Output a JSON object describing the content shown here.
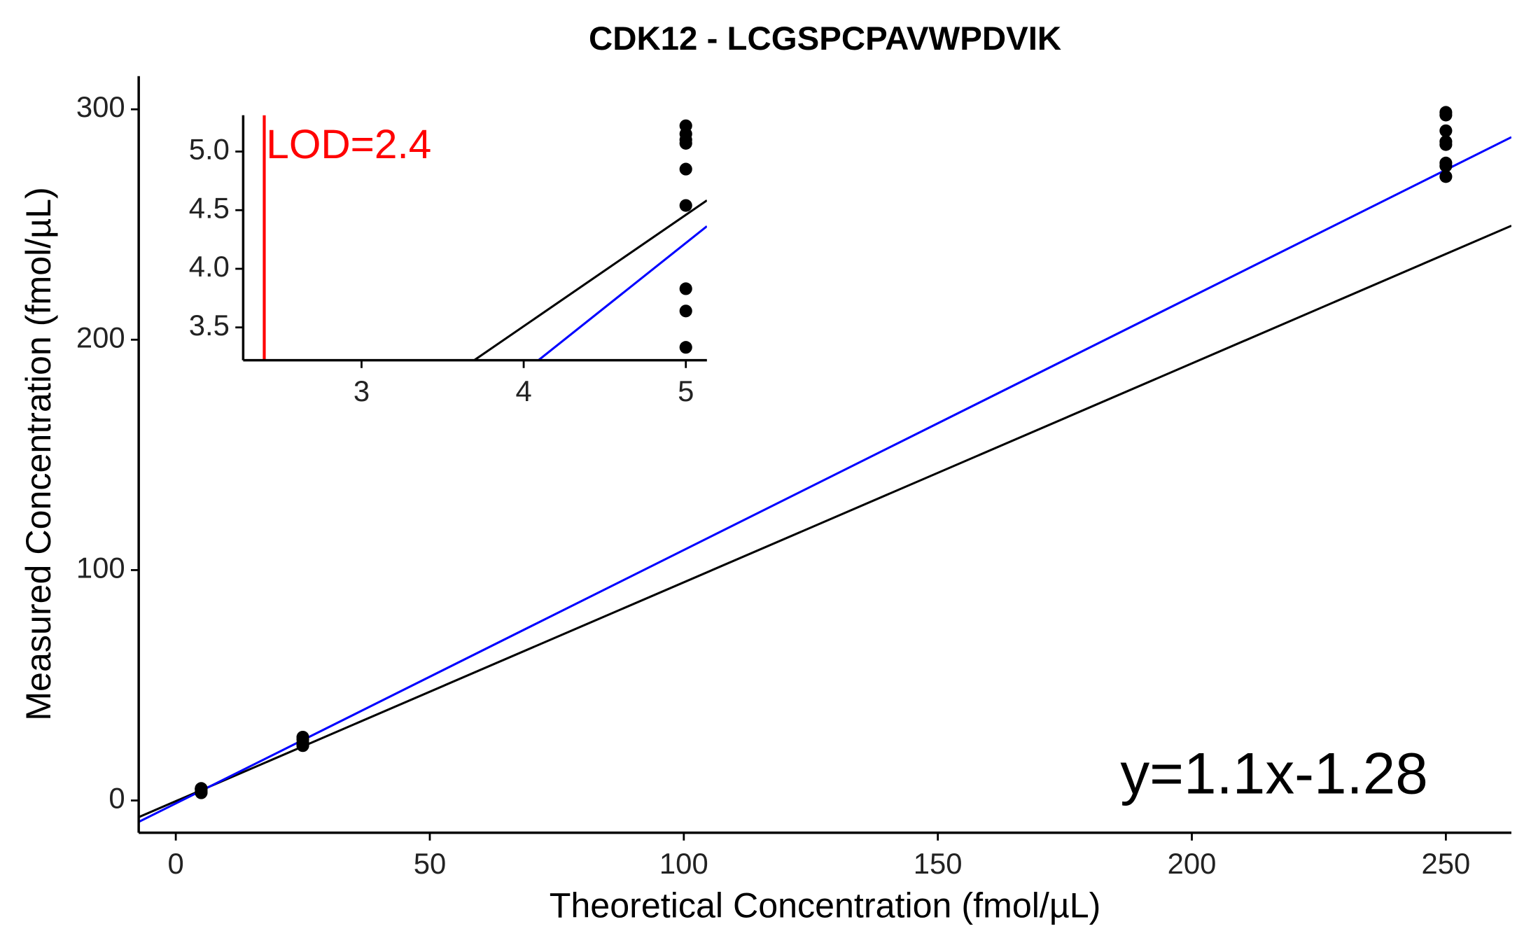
{
  "chart_data": [
    {
      "type": "scatter",
      "title": "CDK12 - LCGSPCPAVWPDVIK",
      "x_label": "Theoretical Concentration (fmol/µL)",
      "y_label": "Measured Concentration (fmol/µL)",
      "x": [
        5,
        5,
        5,
        5,
        5,
        5,
        5,
        5,
        5,
        25,
        25,
        25,
        25,
        25,
        250,
        250,
        250,
        250,
        250,
        250,
        250,
        250
      ],
      "values": [
        5.22,
        5.15,
        5.1,
        5.07,
        4.85,
        4.54,
        3.83,
        3.64,
        3.33,
        27.5,
        26.5,
        25.0,
        24.2,
        23.8,
        298.7,
        297.5,
        290.7,
        286.0,
        284.7,
        276.7,
        275.4,
        270.8
      ],
      "color": "#000000",
      "lines": [
        {
          "color": "#000000",
          "slope": 0.95,
          "intercept": -0.29
        },
        {
          "color": "#0000ff",
          "slope": 1.1,
          "intercept": -1.28
        }
      ],
      "annotation": "y=1.1x-1.28",
      "xlim": [
        -7.3,
        262.9
      ],
      "ylim": [
        -14,
        314.4
      ],
      "xticks": [
        0,
        50,
        100,
        150,
        200,
        250
      ],
      "yticks": [
        0,
        100,
        200,
        300
      ]
    },
    {
      "type": "scatter",
      "x": [
        5,
        5,
        5,
        5,
        5,
        5,
        5,
        5,
        5
      ],
      "values": [
        5.22,
        5.15,
        5.1,
        5.07,
        4.85,
        4.54,
        3.83,
        3.64,
        3.33
      ],
      "color": "#000000",
      "lines": [
        {
          "color": "#000000",
          "slope": 0.95,
          "intercept": -0.29
        },
        {
          "color": "#0000ff",
          "slope": 1.1,
          "intercept": -1.28
        }
      ],
      "lod": 2.4,
      "lod_color": "#ff0000",
      "annotation": "LOD=2.4",
      "xlim": [
        2.27,
        5.13
      ],
      "ylim": [
        3.22,
        5.31
      ],
      "xticks": [
        3,
        4,
        5
      ],
      "yticks": [
        3.5,
        {
          "value": 4.0,
          "label": "4.0"
        },
        4.5,
        {
          "value": 5.0,
          "label": "5.0"
        }
      ]
    }
  ]
}
